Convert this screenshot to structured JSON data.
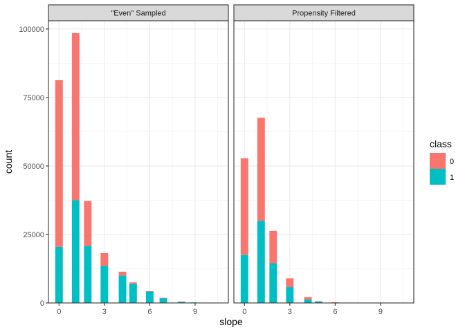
{
  "chart_data": {
    "type": "bar",
    "stacked": true,
    "xlabel": "slope",
    "ylabel": "count",
    "ylim": [
      0,
      103000
    ],
    "xlim": [
      -0.7,
      11.2
    ],
    "y_ticks": [
      0,
      25000,
      50000,
      75000,
      100000
    ],
    "y_tick_labels": [
      "0",
      "25000",
      "50000",
      "75000",
      "100000"
    ],
    "x_ticks": [
      0,
      3,
      6,
      9
    ],
    "x_tick_labels": [
      "0",
      "3",
      "6",
      "9"
    ],
    "grid": true,
    "legend": {
      "title": "class",
      "position": "right",
      "entries": [
        {
          "label": "0",
          "color": "#F8766D"
        },
        {
          "label": "1",
          "color": "#00BFC4"
        }
      ]
    },
    "x": [
      0,
      1.1,
      1.9,
      3.0,
      4.2,
      4.9,
      6.0,
      6.9,
      8.1,
      8.9,
      10.0
    ],
    "panels": [
      {
        "title": "\"Even\" Sampled",
        "series": [
          {
            "name": "1",
            "color": "#00BFC4",
            "values": [
              20500,
              37500,
              20800,
              13500,
              10000,
              7000,
              4200,
              1800,
              500,
              200,
              30
            ]
          },
          {
            "name": "0",
            "color": "#F8766D",
            "values": [
              60800,
              61000,
              16400,
              4700,
              1400,
              500,
              100,
              30,
              10,
              0,
              0
            ]
          }
        ]
      },
      {
        "title": "Propensity Filtered",
        "series": [
          {
            "name": "1",
            "color": "#00BFC4",
            "values": [
              17500,
              30000,
              14500,
              5800,
              1300,
              500,
              200,
              80,
              30,
              10,
              0
            ]
          },
          {
            "name": "0",
            "color": "#F8766D",
            "values": [
              35300,
              37600,
              11800,
              3200,
              900,
              150,
              50,
              20,
              0,
              0,
              0
            ]
          }
        ]
      }
    ]
  }
}
